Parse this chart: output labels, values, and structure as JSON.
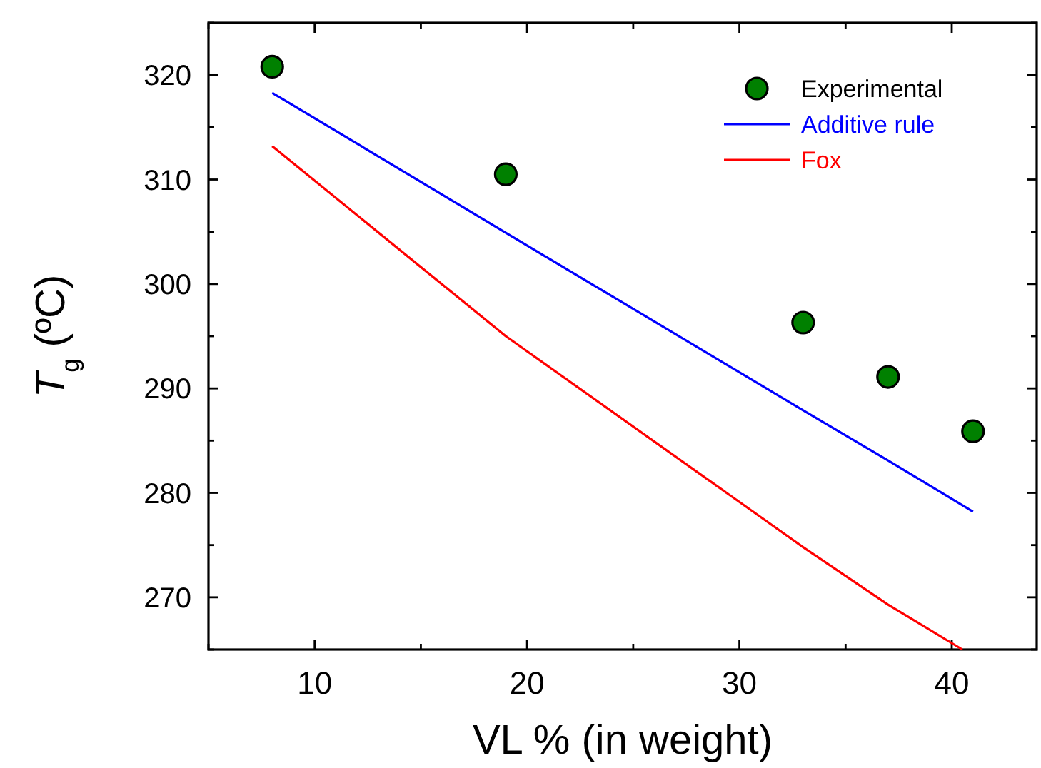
{
  "chart_data": {
    "type": "line",
    "xlabel": "VL % (in weight)",
    "ylabel": "T$_{g}$ (ºC)",
    "x": [
      8,
      19,
      33,
      37,
      41
    ],
    "series": [
      {
        "name": "Experimental",
        "type": "scatter",
        "color": "#008000",
        "marker": "circle",
        "values": [
          320.8,
          310.5,
          296.3,
          291.1,
          285.9
        ]
      },
      {
        "name": "Additive rule",
        "color": "#0000ff",
        "values": [
          318.3,
          304.9,
          287.9,
          283.1,
          278.2
        ]
      },
      {
        "name": "Fox",
        "color": "#ff0000",
        "x": [
          8,
          19,
          33,
          37,
          40.5
        ],
        "values": [
          313.2,
          295,
          274.8,
          269.3,
          265
        ]
      }
    ],
    "xlim": [
      5,
      44
    ],
    "xticks": [
      {
        "value": 5,
        "label": null
      },
      10,
      {
        "value": 15,
        "label": null
      },
      20,
      {
        "value": 25,
        "label": null
      },
      30,
      {
        "value": 35,
        "label": null
      },
      40
    ],
    "ylim": [
      265,
      325
    ],
    "yticks": [
      {
        "value": 265,
        "label": null
      },
      270,
      {
        "value": 275,
        "label": null
      },
      280,
      {
        "value": 285,
        "label": null
      },
      290,
      {
        "value": 295,
        "label": null
      },
      300,
      {
        "value": 305,
        "label": null
      },
      310,
      {
        "value": 315,
        "label": null
      },
      320,
      {
        "value": 325,
        "label": null
      }
    ],
    "legend": "top right",
    "grid": false,
    "line_style": "solid"
  }
}
